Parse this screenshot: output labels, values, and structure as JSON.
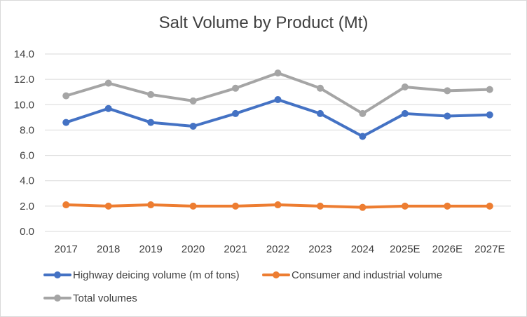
{
  "chart_data": {
    "type": "line",
    "title": "Salt Volume by Product (Mt)",
    "categories": [
      "2017",
      "2018",
      "2019",
      "2020",
      "2021",
      "2022",
      "2023",
      "2024",
      "2025E",
      "2026E",
      "2027E"
    ],
    "ylim": [
      0,
      14
    ],
    "yticks": [
      "0.0",
      "2.0",
      "4.0",
      "6.0",
      "8.0",
      "10.0",
      "12.0",
      "14.0"
    ],
    "grid": true,
    "legend_position": "bottom",
    "series": [
      {
        "name": "Highway deicing volume (m of tons)",
        "color": "#4472c4",
        "values": [
          8.6,
          9.7,
          8.6,
          8.3,
          9.3,
          10.4,
          9.3,
          7.5,
          9.3,
          9.1,
          9.2
        ]
      },
      {
        "name": "Consumer and industrial volume",
        "color": "#ed7d31",
        "values": [
          2.1,
          2.0,
          2.1,
          2.0,
          2.0,
          2.1,
          2.0,
          1.9,
          2.0,
          2.0,
          2.0
        ]
      },
      {
        "name": "Total volumes",
        "color": "#a5a5a5",
        "values": [
          10.7,
          11.7,
          10.8,
          10.3,
          11.3,
          12.5,
          11.3,
          9.3,
          11.4,
          11.1,
          11.2
        ]
      }
    ]
  }
}
